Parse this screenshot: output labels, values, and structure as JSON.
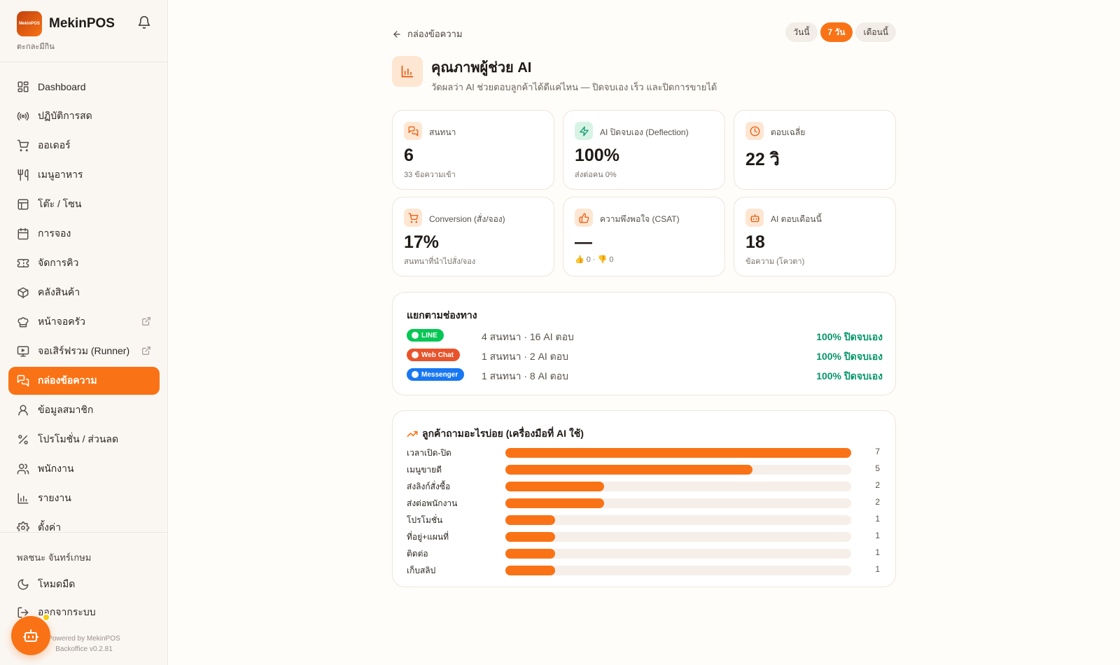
{
  "sidebar": {
    "brand": "MekinPOS",
    "logo_text": "MekinPOS",
    "subtitle": "ตะกละมีกิน",
    "items": [
      {
        "label": "Dashboard",
        "icon": "dashboard-icon"
      },
      {
        "label": "ปฏิบัติการสด",
        "icon": "broadcast-icon"
      },
      {
        "label": "ออเดอร์",
        "icon": "cart-icon"
      },
      {
        "label": "เมนูอาหาร",
        "icon": "utensils-icon"
      },
      {
        "label": "โต๊ะ / โซน",
        "icon": "table-grid-icon"
      },
      {
        "label": "การจอง",
        "icon": "calendar-icon"
      },
      {
        "label": "จัดการคิว",
        "icon": "ticket-icon"
      },
      {
        "label": "คลังสินค้า",
        "icon": "box-icon"
      },
      {
        "label": "หน้าจอครัว",
        "icon": "chef-hat-icon",
        "external": true
      },
      {
        "label": "จอเสิร์ฟรวม (Runner)",
        "icon": "monitor-icon",
        "external": true
      },
      {
        "label": "กล่องข้อความ",
        "icon": "message-icon",
        "active": true
      },
      {
        "label": "ข้อมูลสมาชิก",
        "icon": "user-icon"
      },
      {
        "label": "โปรโมชั่น / ส่วนลด",
        "icon": "percent-icon"
      },
      {
        "label": "พนักงาน",
        "icon": "users-icon"
      },
      {
        "label": "รายงาน",
        "icon": "bar-chart-icon"
      },
      {
        "label": "ตั้งค่า",
        "icon": "gear-icon"
      }
    ],
    "user_name": "พลชนะ จันทร์เกษม",
    "dark_mode": "โหมดมืด",
    "logout": "ออกจากระบบ",
    "footer_line1": "Powered by MekinPOS",
    "footer_line2": "Backoffice v0.2.81"
  },
  "header": {
    "back_label": "กล่องข้อความ",
    "ranges": [
      "วันนี้",
      "7 วัน",
      "เดือนนี้"
    ],
    "active_range": "7 วัน",
    "title": "คุณภาพผู้ช่วย AI",
    "subtitle": "วัดผลว่า AI ช่วยตอบลูกค้าได้ดีแค่ไหน — ปิดจบเอง เร็ว และปิดการขายได้"
  },
  "stats": [
    {
      "label": "สนทนา",
      "value": "6",
      "note": "33 ข้อความเข้า",
      "icon": "chat-icon",
      "color": "#ea580c",
      "bg": "#fde6d2"
    },
    {
      "label": "AI ปิดจบเอง (Deflection)",
      "value": "100%",
      "note": "ส่งต่อคน 0%",
      "icon": "lightning-icon",
      "color": "#059669",
      "bg": "#d7f3e6"
    },
    {
      "label": "ตอบเฉลี่ย",
      "value": "22 วิ",
      "note": "",
      "icon": "clock-icon",
      "color": "#ea580c",
      "bg": "#fde6d2"
    },
    {
      "label": "Conversion (สั่ง/จอง)",
      "value": "17%",
      "note": "สนทนาที่นำไปสั่ง/จอง",
      "icon": "cart-icon",
      "color": "#ea580c",
      "bg": "#fde6d2"
    },
    {
      "label": "ความพึงพอใจ (CSAT)",
      "value": "—",
      "note": "👍 0 · 👎 0",
      "icon": "thumbs-up-icon",
      "color": "#ea580c",
      "bg": "#fde6d2"
    },
    {
      "label": "AI ตอบเดือนนี้",
      "value": "18",
      "note": "ข้อความ (โควตา)",
      "icon": "robot-icon",
      "color": "#ea580c",
      "bg": "#fde6d2"
    }
  ],
  "channels": {
    "title": "แยกตามช่องทาง",
    "rows": [
      {
        "name": "LINE",
        "color": "#06c755",
        "info": "4 สนทนา · 16 AI ตอบ",
        "rate": "100% ปิดจบเอง"
      },
      {
        "name": "Web Chat",
        "color": "#e8532b",
        "info": "1 สนทนา · 2 AI ตอบ",
        "rate": "100% ปิดจบเอง"
      },
      {
        "name": "Messenger",
        "color": "#1877f2",
        "info": "1 สนทนา · 8 AI ตอบ",
        "rate": "100% ปิดจบเอง"
      }
    ]
  },
  "questions": {
    "title": "ลูกค้าถามอะไรบ่อย (เครื่องมือที่ AI ใช้)",
    "max": 7,
    "rows": [
      {
        "label": "เวลาเปิด-ปิด",
        "value": 7
      },
      {
        "label": "เมนูขายดี",
        "value": 5
      },
      {
        "label": "ส่งลิงก์สั่งซื้อ",
        "value": 2
      },
      {
        "label": "ส่งต่อพนักงาน",
        "value": 2
      },
      {
        "label": "โปรโมชั่น",
        "value": 1
      },
      {
        "label": "ที่อยู่+แผนที่",
        "value": 1
      },
      {
        "label": "ติดต่อ",
        "value": 1
      },
      {
        "label": "เก็บสลิป",
        "value": 1
      }
    ]
  }
}
